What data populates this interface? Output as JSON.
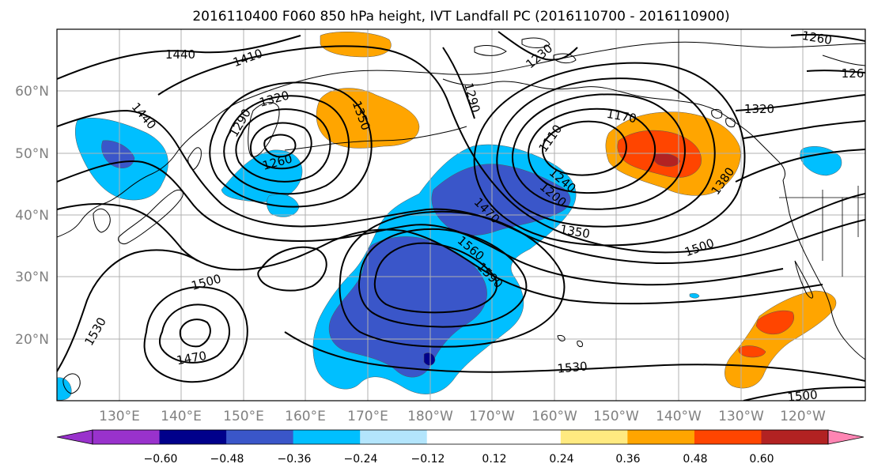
{
  "title": "2016110400 F060 850 hPa height, IVT Landfall PC (2016110700 - 2016110900)",
  "map": {
    "lon_ticks": [
      "130°E",
      "140°E",
      "150°E",
      "160°E",
      "170°E",
      "180°W",
      "170°W",
      "160°W",
      "150°W",
      "140°W",
      "130°W",
      "120°W"
    ],
    "lat_ticks": [
      "60°N",
      "50°N",
      "40°N",
      "30°N",
      "20°N"
    ],
    "colors": {
      "neg_060": "#9932cc",
      "neg_048": "#00008b",
      "neg_036": "#3a56c9",
      "neg_024": "#00bfff",
      "neg_012": "#b3e5fc",
      "neutral": "#ffffff",
      "pos_012": "#ffea80",
      "pos_024": "#ffa500",
      "pos_036": "#ff4500",
      "pos_048": "#b22222",
      "pos_060": "#ff85b3",
      "coast": "#000000",
      "grid": "#b0b0b0"
    }
  },
  "contour_labels": [
    {
      "id": "c1440a",
      "text": "1440"
    },
    {
      "id": "c1410",
      "text": "1410"
    },
    {
      "id": "c1320a",
      "text": "1320"
    },
    {
      "id": "c1440b",
      "text": "1440"
    },
    {
      "id": "c1290a",
      "text": "1290"
    },
    {
      "id": "c1350a",
      "text": "1350"
    },
    {
      "id": "c1260a",
      "text": "1260"
    },
    {
      "id": "c1230",
      "text": "1230"
    },
    {
      "id": "c1290b",
      "text": "1290"
    },
    {
      "id": "c1260b",
      "text": "1260"
    },
    {
      "id": "c1260c",
      "text": "126"
    },
    {
      "id": "c1170",
      "text": "1170"
    },
    {
      "id": "c1110",
      "text": "1110"
    },
    {
      "id": "c1320b",
      "text": "1320"
    },
    {
      "id": "c1240",
      "text": "1240"
    },
    {
      "id": "c1200",
      "text": "1200"
    },
    {
      "id": "c1470a",
      "text": "1470"
    },
    {
      "id": "c1380",
      "text": "1380"
    },
    {
      "id": "c1350b",
      "text": "1350"
    },
    {
      "id": "c1500a",
      "text": "1500"
    },
    {
      "id": "c1560",
      "text": "1560"
    },
    {
      "id": "c1590",
      "text": "1590"
    },
    {
      "id": "c1500b",
      "text": "1500"
    },
    {
      "id": "c1530a",
      "text": "1530"
    },
    {
      "id": "c1470b",
      "text": "1470"
    },
    {
      "id": "c1530b",
      "text": "1530"
    },
    {
      "id": "c1500c",
      "text": "1500"
    }
  ],
  "colorbar": {
    "bins": [
      {
        "key": "neg_060"
      },
      {
        "key": "neg_048"
      },
      {
        "key": "neg_036"
      },
      {
        "key": "neg_024"
      },
      {
        "key": "neg_012"
      },
      {
        "key": "neutral"
      },
      {
        "key": "neutral"
      },
      {
        "key": "pos_012"
      },
      {
        "key": "pos_024"
      },
      {
        "key": "pos_036"
      },
      {
        "key": "pos_048"
      },
      {
        "key": "pos_060"
      }
    ],
    "labels": [
      "−0.60",
      "−0.48",
      "−0.36",
      "−0.24",
      "−0.12",
      "0.12",
      "0.24",
      "0.36",
      "0.48",
      "0.60"
    ]
  }
}
